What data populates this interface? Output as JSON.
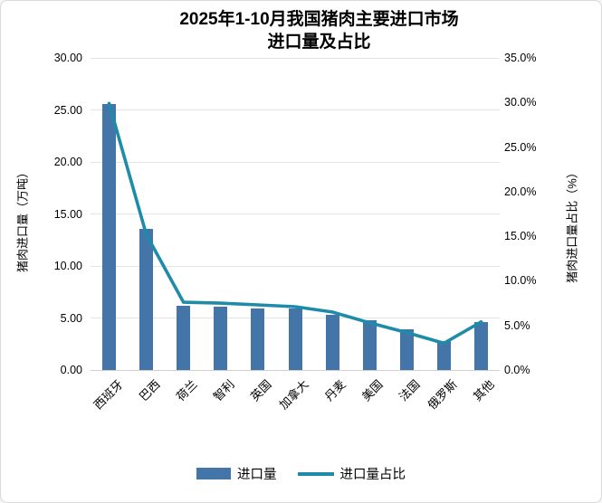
{
  "title": {
    "line1": "2025年1-10月我国猪肉主要进口市场",
    "line2": "进口量及占比"
  },
  "colors": {
    "bar": "#4375a8",
    "line": "#1e8ca8",
    "grid": "#e3e3e3",
    "axis_line": "#cfcfcf",
    "border": "#d9d9d9",
    "background": "#ffffff",
    "text": "#000000"
  },
  "axes": {
    "left": {
      "title": "猪肉进口量（万吨）",
      "tick_values": [
        0,
        5,
        10,
        15,
        20,
        25,
        30
      ],
      "tick_labels": [
        "0.00",
        "5.00",
        "10.00",
        "15.00",
        "20.00",
        "25.00",
        "30.00"
      ],
      "max": 30
    },
    "right": {
      "title": "猪肉进口量占比（%）",
      "tick_values": [
        0,
        5,
        10,
        15,
        20,
        25,
        30,
        35
      ],
      "tick_labels": [
        "0.0%",
        "5.0%",
        "10.0%",
        "15.0%",
        "20.0%",
        "25.0%",
        "30.0%",
        "35.0%"
      ],
      "max": 35
    }
  },
  "chart_data": {
    "type": "bar",
    "subtype": "combo-bar-line-dual-axis",
    "title": "2025年1-10月我国猪肉主要进口市场进口量及占比",
    "categories": [
      "西班牙",
      "巴西",
      "荷兰",
      "智利",
      "英国",
      "加拿大",
      "丹麦",
      "美国",
      "法国",
      "俄罗斯",
      "其他"
    ],
    "series": [
      {
        "name": "进口量",
        "type": "bar",
        "axis": "left",
        "unit": "万吨",
        "values": [
          25.6,
          13.6,
          6.2,
          6.1,
          5.9,
          5.9,
          5.3,
          4.8,
          3.9,
          2.8,
          4.6
        ]
      },
      {
        "name": "进口量占比",
        "type": "line",
        "axis": "right",
        "unit": "%",
        "values": [
          29.9,
          15.2,
          7.6,
          7.5,
          7.3,
          7.1,
          6.5,
          5.3,
          4.2,
          3.0,
          5.4
        ]
      }
    ],
    "xlabel": "",
    "ylabel_left": "猪肉进口量（万吨）",
    "ylabel_right": "猪肉进口量占比（%）",
    "ylim_left": [
      0,
      30
    ],
    "ylim_right": [
      0,
      35
    ],
    "grid": true,
    "legend_position": "bottom"
  }
}
